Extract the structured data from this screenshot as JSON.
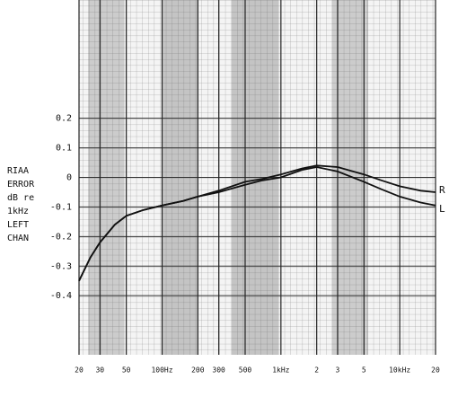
{
  "chart_data": {
    "type": "line",
    "y_label_lines": [
      "RIAA",
      "ERROR",
      "dB re",
      "1kHz",
      "LEFT",
      "CHAN"
    ],
    "x": [
      20,
      25,
      30,
      40,
      50,
      70,
      100,
      150,
      200,
      300,
      500,
      700,
      1000,
      1500,
      2000,
      3000,
      5000,
      7000,
      10000,
      15000,
      20000
    ],
    "series": [
      {
        "name": "R",
        "color": "#111111",
        "values": [
          -0.35,
          -0.27,
          -0.22,
          -0.16,
          -0.13,
          -0.11,
          -0.095,
          -0.08,
          -0.065,
          -0.045,
          -0.015,
          -0.005,
          0.01,
          0.03,
          0.04,
          0.035,
          0.01,
          -0.01,
          -0.03,
          -0.045,
          -0.05
        ]
      },
      {
        "name": "L",
        "color": "#111111",
        "values": [
          -0.35,
          -0.27,
          -0.22,
          -0.16,
          -0.13,
          -0.11,
          -0.095,
          -0.08,
          -0.065,
          -0.05,
          -0.025,
          -0.01,
          0.0,
          0.025,
          0.035,
          0.02,
          -0.015,
          -0.04,
          -0.065,
          -0.085,
          -0.095
        ]
      }
    ],
    "x_log": true,
    "xlim": [
      20,
      20000
    ],
    "xticks": [
      20,
      30,
      50,
      {
        "value": 100,
        "label": "100Hz"
      },
      200,
      300,
      500,
      {
        "value": 1000,
        "label": "1kHz"
      },
      {
        "value": 2000,
        "label": "2"
      },
      {
        "value": 3000,
        "label": "3"
      },
      {
        "value": 5000,
        "label": "5"
      },
      {
        "value": 10000,
        "label": "10kHz"
      },
      {
        "value": 20000,
        "label": "20"
      }
    ],
    "ylim": [
      -0.6,
      0.6
    ],
    "yticks": [
      -0.4,
      -0.3,
      -0.2,
      -0.1,
      0,
      0.1,
      0.2
    ],
    "grid": true
  }
}
